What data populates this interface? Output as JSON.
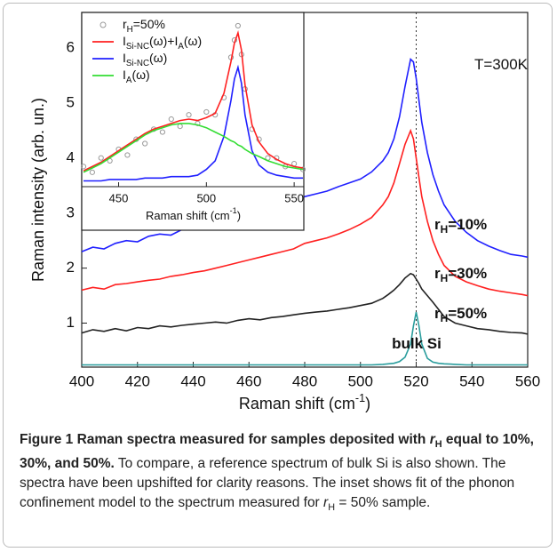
{
  "chart_data": [
    {
      "type": "line",
      "xlabel": [
        "Raman shift (cm",
        "-1",
        ")"
      ],
      "ylabel": "Raman intensity (arb. un.)",
      "xlim": [
        400,
        560
      ],
      "ylim": [
        0.2,
        6.65
      ],
      "xticks": [
        400,
        420,
        440,
        460,
        480,
        500,
        520,
        540,
        560
      ],
      "yticks": [
        1,
        2,
        3,
        4,
        5,
        6
      ],
      "vline": 520,
      "x": [
        400,
        404,
        408,
        412,
        416,
        420,
        424,
        428,
        432,
        436,
        440,
        444,
        448,
        452,
        456,
        460,
        464,
        468,
        472,
        476,
        480,
        484,
        488,
        492,
        496,
        500,
        504,
        508,
        510,
        512,
        514,
        516,
        518,
        519,
        520,
        521,
        522,
        524,
        526,
        528,
        530,
        534,
        538,
        542,
        546,
        550,
        554,
        558,
        560
      ],
      "series": [
        {
          "color": "#2020ff",
          "values": [
            2.3,
            2.38,
            2.35,
            2.45,
            2.5,
            2.48,
            2.58,
            2.62,
            2.6,
            2.7,
            2.72,
            2.8,
            2.85,
            2.88,
            2.95,
            3.0,
            3.05,
            3.1,
            3.2,
            3.22,
            3.3,
            3.35,
            3.4,
            3.48,
            3.55,
            3.62,
            3.75,
            3.95,
            4.1,
            4.35,
            4.75,
            5.3,
            5.8,
            5.75,
            5.45,
            5.05,
            4.65,
            4.1,
            3.7,
            3.4,
            3.15,
            2.85,
            2.65,
            2.5,
            2.4,
            2.32,
            2.25,
            2.22,
            2.2
          ]
        },
        {
          "color": "#ff2020",
          "values": [
            1.6,
            1.65,
            1.62,
            1.7,
            1.72,
            1.75,
            1.78,
            1.8,
            1.85,
            1.88,
            1.92,
            1.95,
            2.0,
            2.05,
            2.1,
            2.15,
            2.2,
            2.25,
            2.3,
            2.35,
            2.45,
            2.5,
            2.55,
            2.62,
            2.7,
            2.8,
            2.92,
            3.15,
            3.3,
            3.55,
            3.9,
            4.25,
            4.5,
            4.35,
            4.0,
            3.65,
            3.3,
            2.85,
            2.5,
            2.25,
            2.05,
            1.85,
            1.75,
            1.68,
            1.62,
            1.58,
            1.55,
            1.52,
            1.5
          ]
        },
        {
          "color": "#222222",
          "values": [
            0.82,
            0.88,
            0.85,
            0.9,
            0.86,
            0.92,
            0.9,
            0.95,
            0.93,
            0.96,
            0.98,
            1.0,
            1.02,
            1.0,
            1.05,
            1.08,
            1.06,
            1.1,
            1.12,
            1.15,
            1.18,
            1.2,
            1.22,
            1.25,
            1.28,
            1.32,
            1.36,
            1.45,
            1.52,
            1.6,
            1.7,
            1.82,
            1.9,
            1.88,
            1.8,
            1.72,
            1.62,
            1.5,
            1.38,
            1.25,
            1.12,
            1.0,
            0.95,
            0.9,
            0.88,
            0.85,
            0.83,
            0.82,
            0.8
          ]
        },
        {
          "color": "#2a9d9d",
          "values": [
            0.24,
            0.24,
            0.24,
            0.24,
            0.24,
            0.24,
            0.24,
            0.24,
            0.24,
            0.24,
            0.24,
            0.24,
            0.24,
            0.24,
            0.24,
            0.24,
            0.24,
            0.24,
            0.24,
            0.24,
            0.24,
            0.24,
            0.24,
            0.24,
            0.24,
            0.24,
            0.24,
            0.25,
            0.26,
            0.27,
            0.3,
            0.38,
            0.62,
            0.95,
            1.2,
            0.95,
            0.62,
            0.36,
            0.29,
            0.27,
            0.26,
            0.25,
            0.24,
            0.24,
            0.24,
            0.24,
            0.24,
            0.24,
            0.24
          ]
        }
      ],
      "annotations": [
        {
          "parts": [
            "T=300K"
          ]
        },
        {
          "parts": [
            "r",
            "H",
            "=10%"
          ]
        },
        {
          "parts": [
            "r",
            "H",
            "=30%"
          ]
        },
        {
          "parts": [
            "r",
            "H",
            "=50%"
          ]
        },
        {
          "parts": [
            "bulk Si"
          ]
        }
      ]
    },
    {
      "type": "line",
      "xlabel": [
        "Raman shift (cm",
        "-1",
        ")"
      ],
      "xlim": [
        430,
        555
      ],
      "ylim": [
        0,
        1.2
      ],
      "xticks": [
        450,
        500,
        550
      ],
      "x": [
        430,
        435,
        440,
        445,
        450,
        455,
        460,
        465,
        470,
        475,
        480,
        485,
        490,
        495,
        500,
        505,
        510,
        514,
        516,
        518,
        520,
        522,
        526,
        530,
        535,
        540,
        545,
        550,
        555
      ],
      "series": [
        {
          "name": [
            "r",
            "H",
            "=50%"
          ],
          "color": "#999999",
          "markers": true,
          "values": [
            0.14,
            0.1,
            0.2,
            0.18,
            0.26,
            0.22,
            0.33,
            0.3,
            0.4,
            0.38,
            0.47,
            0.42,
            0.5,
            0.44,
            0.52,
            0.5,
            0.62,
            0.9,
            1.02,
            1.12,
            0.92,
            0.68,
            0.4,
            0.33,
            0.2,
            0.2,
            0.14,
            0.16,
            0.12
          ]
        },
        {
          "name": [
            "I",
            "Si-NC",
            "(ω)+I",
            "A",
            "(ω)"
          ],
          "color": "#ff2020",
          "values": [
            0.11,
            0.14,
            0.17,
            0.21,
            0.25,
            0.29,
            0.33,
            0.37,
            0.4,
            0.42,
            0.44,
            0.46,
            0.47,
            0.46,
            0.48,
            0.51,
            0.65,
            0.87,
            1.0,
            1.07,
            0.95,
            0.71,
            0.43,
            0.31,
            0.23,
            0.19,
            0.16,
            0.14,
            0.13
          ]
        },
        {
          "name": [
            "I",
            "Si-NC",
            "(ω)"
          ],
          "color": "#2020ff",
          "values": [
            0.04,
            0.04,
            0.04,
            0.05,
            0.05,
            0.05,
            0.05,
            0.06,
            0.06,
            0.06,
            0.07,
            0.07,
            0.07,
            0.08,
            0.12,
            0.18,
            0.35,
            0.6,
            0.75,
            0.83,
            0.72,
            0.5,
            0.25,
            0.15,
            0.1,
            0.08,
            0.07,
            0.06,
            0.06
          ]
        },
        {
          "name": [
            "I",
            "A",
            "(ω)"
          ],
          "color": "#33dd33",
          "values": [
            0.1,
            0.13,
            0.16,
            0.2,
            0.24,
            0.28,
            0.32,
            0.36,
            0.39,
            0.41,
            0.43,
            0.44,
            0.44,
            0.43,
            0.41,
            0.38,
            0.35,
            0.32,
            0.31,
            0.29,
            0.28,
            0.26,
            0.23,
            0.21,
            0.18,
            0.16,
            0.14,
            0.13,
            0.12
          ]
        }
      ]
    }
  ],
  "caption": [
    {
      "text": "Figure 1 Raman spectra measured for samples deposited with ",
      "style": "b"
    },
    {
      "text": "r",
      "style": "bi"
    },
    {
      "text": "H",
      "style": "bsub"
    },
    {
      "text": " equal to 10%, 30%, and 50%.",
      "style": "b"
    },
    {
      "text": " To compare, a reference spectrum of bulk Si is also shown. The spectra have been upshifted for clarity reasons. The inset shows fit of the phonon confinement model to the spectrum measured for ",
      "style": "n"
    },
    {
      "text": "r",
      "style": "i"
    },
    {
      "text": "H",
      "style": "sub"
    },
    {
      "text": " = 50% sample.",
      "style": "n"
    }
  ]
}
